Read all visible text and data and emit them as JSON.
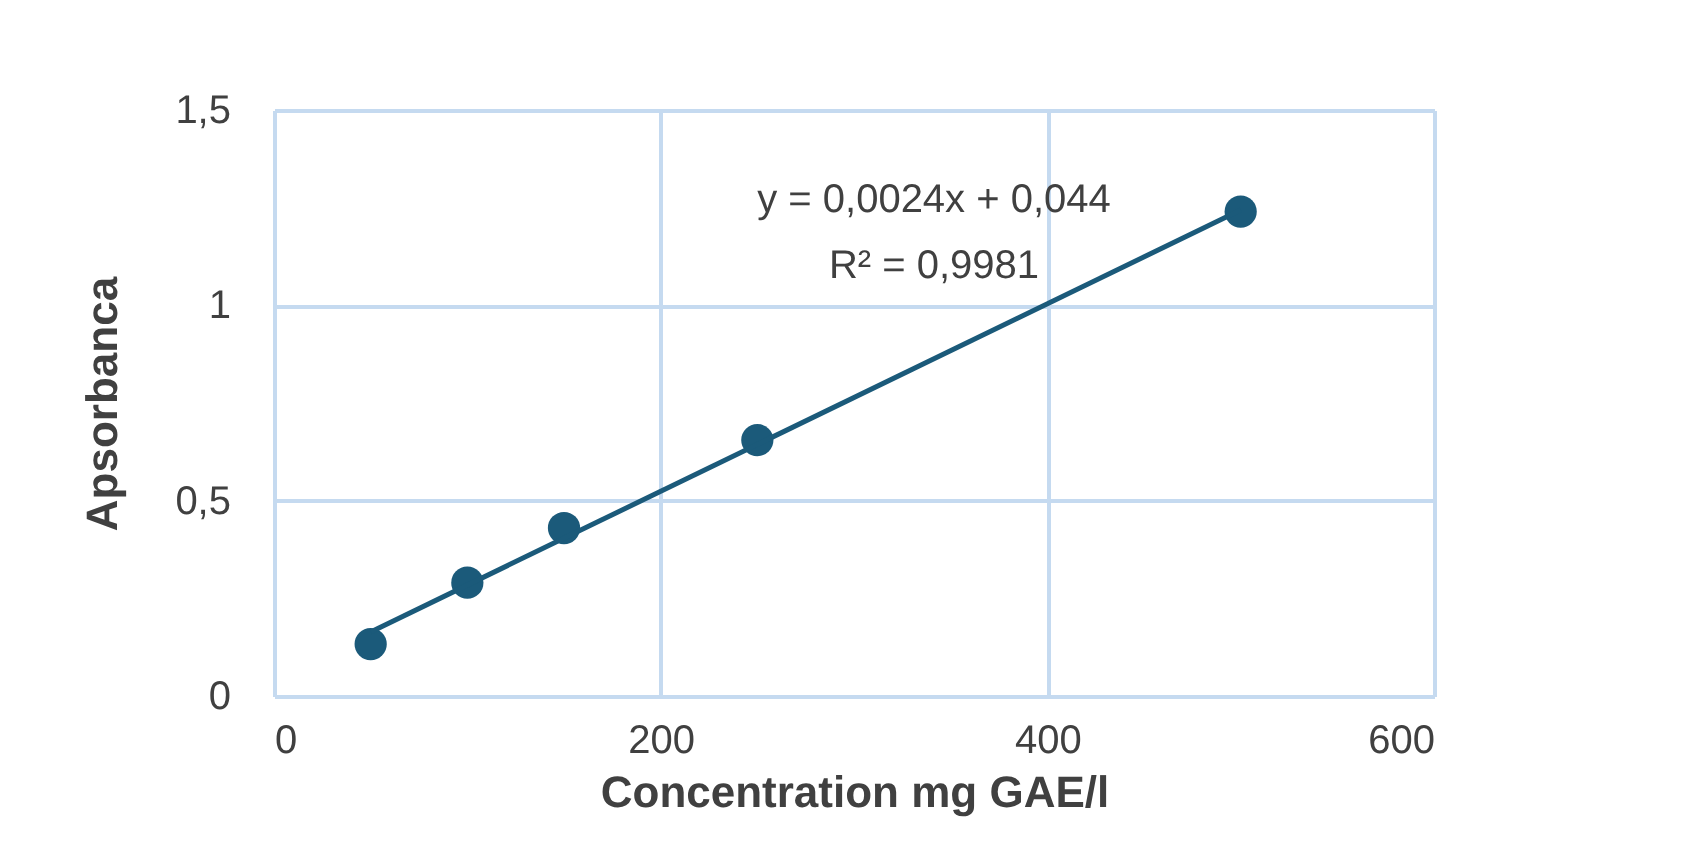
{
  "chart_data": {
    "type": "scatter",
    "xlabel": "Concentration mg GAE/l",
    "ylabel": "Apsorbanca",
    "x": [
      50,
      100,
      150,
      250,
      500
    ],
    "series": [
      {
        "type": "scatter",
        "color": "#1b5a7a",
        "marker": "circle",
        "values": [
          0.133,
          0.29,
          0.43,
          0.655,
          1.24
        ]
      },
      {
        "type": "line",
        "color": "#1b5a7a",
        "marker": "none",
        "line_style": "solid",
        "x": [
          50,
          500
        ],
        "values": [
          0.164,
          1.244
        ]
      }
    ],
    "annotations": [
      "y = 0,0024x + 0,044",
      "R² = 0,9981"
    ],
    "xlim": [
      0,
      600
    ],
    "xticks": [
      0,
      200,
      400,
      600
    ],
    "ylim": [
      0,
      1.5
    ],
    "yticks": [
      0,
      {
        "value": 0.5,
        "label": "0,5"
      },
      1,
      {
        "value": 1.5,
        "label": "1,5"
      }
    ],
    "grid": true
  }
}
